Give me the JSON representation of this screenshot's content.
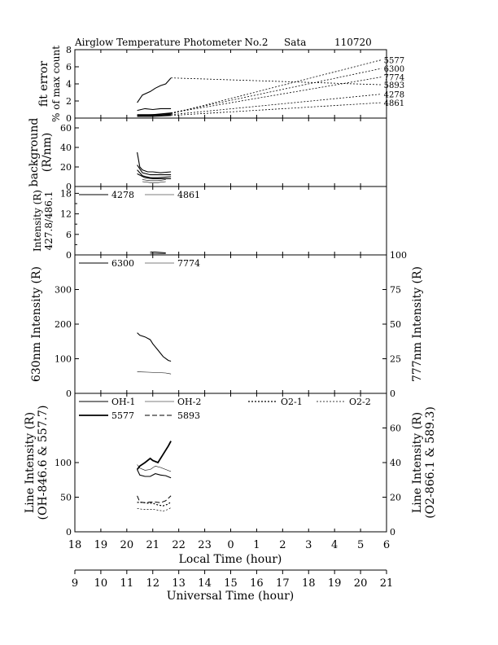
{
  "header": {
    "title": "Airglow Temperature Photometer No.2",
    "station": "Sata",
    "date_code": "110720"
  },
  "chart_data": [
    {
      "type": "line",
      "panel": "fit-error",
      "ylabel": "fit error",
      "ylabel2": "% of max count",
      "ylim": [
        0,
        8
      ],
      "yticks": [
        0,
        2,
        4,
        6,
        8
      ],
      "x_unit": "local time hour",
      "series": [
        {
          "name": "5577",
          "style": "solid",
          "x": [
            20.4,
            20.6,
            20.9,
            21.1,
            21.3,
            21.5,
            21.7
          ],
          "values": [
            1.8,
            2.7,
            3.1,
            3.5,
            3.8,
            4.0,
            4.7
          ]
        },
        {
          "name": "6300",
          "style": "solid",
          "x": [
            20.4,
            20.7,
            21.0,
            21.3,
            21.7
          ],
          "values": [
            0.9,
            1.1,
            1.0,
            1.1,
            1.1
          ]
        },
        {
          "name": "7774",
          "style": "solid",
          "x": [
            20.4,
            21.0,
            21.7
          ],
          "values": [
            0.4,
            0.4,
            0.6
          ]
        },
        {
          "name": "5893",
          "style": "solid",
          "x": [
            20.4,
            21.0,
            21.7
          ],
          "values": [
            0.3,
            0.4,
            0.5
          ]
        },
        {
          "name": "4278",
          "style": "solid",
          "x": [
            20.4,
            21.0,
            21.7
          ],
          "values": [
            0.3,
            0.3,
            0.4
          ]
        },
        {
          "name": "4861",
          "style": "solid",
          "x": [
            20.4,
            21.0,
            21.7
          ],
          "values": [
            0.2,
            0.2,
            0.3
          ]
        }
      ],
      "leaders": [
        {
          "label": "5577",
          "from": [
            21.7,
            0.5
          ],
          "to": [
            29.8,
            6.8
          ]
        },
        {
          "label": "6300",
          "from": [
            21.7,
            0.6
          ],
          "to": [
            29.8,
            5.8
          ]
        },
        {
          "label": "7774",
          "from": [
            21.7,
            0.6
          ],
          "to": [
            29.8,
            4.8
          ]
        },
        {
          "label": "5893",
          "from": [
            21.7,
            4.7
          ],
          "to": [
            29.8,
            3.9
          ]
        },
        {
          "label": "4278",
          "from": [
            21.7,
            0.4
          ],
          "to": [
            29.8,
            2.8
          ]
        },
        {
          "label": "4861",
          "from": [
            21.7,
            0.3
          ],
          "to": [
            29.8,
            1.8
          ]
        }
      ]
    },
    {
      "type": "line",
      "panel": "background",
      "ylabel": "background",
      "ylabel2": "(R/nm)",
      "ylim": [
        0,
        70
      ],
      "yticks": [
        0,
        20,
        40,
        60
      ],
      "series": [
        {
          "name": "5577",
          "style": "solid",
          "x": [
            20.4,
            20.5,
            20.6,
            20.8,
            21.0,
            21.3,
            21.7
          ],
          "values": [
            35,
            20,
            17,
            15,
            15,
            14,
            15
          ]
        },
        {
          "name": "6300",
          "style": "solid",
          "x": [
            20.4,
            20.6,
            20.9,
            21.2,
            21.5,
            21.7
          ],
          "values": [
            22,
            14,
            12,
            12,
            12,
            12
          ]
        },
        {
          "name": "7774",
          "style": "solid",
          "x": [
            20.4,
            20.6,
            20.9,
            21.2,
            21.7
          ],
          "values": [
            17,
            11,
            9,
            9,
            10
          ]
        },
        {
          "name": "5893",
          "style": "solid",
          "x": [
            20.4,
            20.7,
            21.0,
            21.4,
            21.7
          ],
          "values": [
            13,
            9,
            8,
            8,
            8
          ]
        },
        {
          "name": "4278",
          "style": "thin",
          "x": [
            20.6,
            20.9,
            21.2,
            21.5
          ],
          "values": [
            7,
            6,
            6,
            7
          ]
        },
        {
          "name": "4861",
          "style": "thin",
          "x": [
            20.6,
            20.9,
            21.2,
            21.5
          ],
          "values": [
            5,
            4,
            4,
            5
          ]
        }
      ]
    },
    {
      "type": "line",
      "panel": "blue-intensity",
      "ylabel": "Intensity (R)",
      "ylabel2": "427.8/486.1",
      "ylim": [
        0,
        20
      ],
      "yticks": [
        0,
        6,
        12,
        18
      ],
      "yticks_minor": [
        3,
        9,
        15
      ],
      "legend": [
        "4278",
        "4861"
      ],
      "series": [
        {
          "name": "4278",
          "style": "solid",
          "x": [
            20.9,
            21.1,
            21.3,
            21.5
          ],
          "values": [
            0.8,
            0.8,
            0.7,
            0.6
          ]
        },
        {
          "name": "4861",
          "style": "thin",
          "x": [
            20.9,
            21.1,
            21.3,
            21.5
          ],
          "values": [
            0.4,
            0.4,
            0.3,
            0.3
          ]
        }
      ]
    },
    {
      "type": "line",
      "panel": "red-intensity",
      "ylabel": "630nm Intensity (R)",
      "ylabel_right": "777nm Intensity (R)",
      "ylim": [
        0,
        400
      ],
      "yticks": [
        0,
        100,
        200,
        300
      ],
      "ylim_right": [
        0,
        100
      ],
      "yticks_right": [
        0,
        25,
        50,
        75,
        100
      ],
      "legend": [
        "6300",
        "7774"
      ],
      "series": [
        {
          "name": "6300",
          "axis": "left",
          "style": "solid",
          "x": [
            20.4,
            20.5,
            20.7,
            20.9,
            21.0,
            21.2,
            21.4,
            21.6,
            21.7
          ],
          "values": [
            175,
            168,
            163,
            155,
            143,
            125,
            106,
            95,
            93
          ]
        },
        {
          "name": "7774",
          "axis": "right",
          "style": "thin",
          "x": [
            20.4,
            20.8,
            21.2,
            21.5,
            21.7
          ],
          "values": [
            15.5,
            15.3,
            15.0,
            14.7,
            14.0
          ]
        }
      ]
    },
    {
      "type": "line",
      "panel": "line-intensity",
      "ylabel": "Line Intensity (R)",
      "ylabel2": "(OH-846.6 & 557.7)",
      "ylabel_right": "Line Intensity (R)",
      "ylabel_right2": "(O2-866.1 & 589.3)",
      "ylim": [
        0,
        200
      ],
      "yticks": [
        0,
        50,
        100
      ],
      "ylim_right": [
        0,
        80
      ],
      "yticks_right": [
        0,
        20,
        40,
        60
      ],
      "legend": [
        "OH-1",
        "OH-2",
        "O2-1",
        "O2-2",
        "5577",
        "5893"
      ],
      "series": [
        {
          "name": "OH-1",
          "axis": "left",
          "style": "solid",
          "x": [
            20.4,
            20.5,
            20.7,
            20.9,
            21.1,
            21.3,
            21.5,
            21.7
          ],
          "values": [
            90,
            82,
            80,
            80,
            84,
            82,
            81,
            78
          ]
        },
        {
          "name": "OH-2",
          "axis": "left",
          "style": "thin",
          "x": [
            20.4,
            20.5,
            20.7,
            20.9,
            21.1,
            21.3,
            21.5,
            21.7
          ],
          "values": [
            97,
            92,
            89,
            90,
            95,
            93,
            90,
            87
          ]
        },
        {
          "name": "5577",
          "axis": "left",
          "style": "thick",
          "x": [
            20.4,
            20.5,
            20.7,
            20.9,
            21.0,
            21.2,
            21.4,
            21.6,
            21.7
          ],
          "values": [
            90,
            95,
            100,
            106,
            103,
            100,
            112,
            124,
            131
          ]
        },
        {
          "name": "5893",
          "axis": "left",
          "style": "dashed",
          "x": [
            20.4,
            20.5,
            20.7,
            20.9,
            21.1,
            21.3,
            21.5,
            21.7
          ],
          "values": [
            52,
            43,
            42,
            43,
            43,
            42,
            45,
            52
          ]
        },
        {
          "name": "O2-1",
          "axis": "right",
          "style": "dotted",
          "x": [
            20.4,
            20.6,
            20.8,
            21.0,
            21.2,
            21.4,
            21.6,
            21.7
          ],
          "values": [
            17,
            17,
            16.5,
            16.5,
            15.5,
            15,
            16,
            17.5
          ]
        },
        {
          "name": "O2-2",
          "axis": "right",
          "style": "dotted-thin",
          "x": [
            20.4,
            20.6,
            20.8,
            21.0,
            21.2,
            21.4,
            21.6,
            21.7
          ],
          "values": [
            13.5,
            13,
            13,
            13,
            12.5,
            12,
            13,
            14
          ]
        }
      ]
    }
  ],
  "x_axes": {
    "local": {
      "label": "Local Time (hour)",
      "ticks": [
        "18",
        "19",
        "20",
        "21",
        "22",
        "23",
        "0",
        "1",
        "2",
        "3",
        "4",
        "5",
        "6"
      ]
    },
    "universal": {
      "label": "Universal Time (hour)",
      "ticks": [
        "9",
        "10",
        "11",
        "12",
        "13",
        "14",
        "15",
        "16",
        "17",
        "18",
        "19",
        "20",
        "21"
      ]
    }
  }
}
